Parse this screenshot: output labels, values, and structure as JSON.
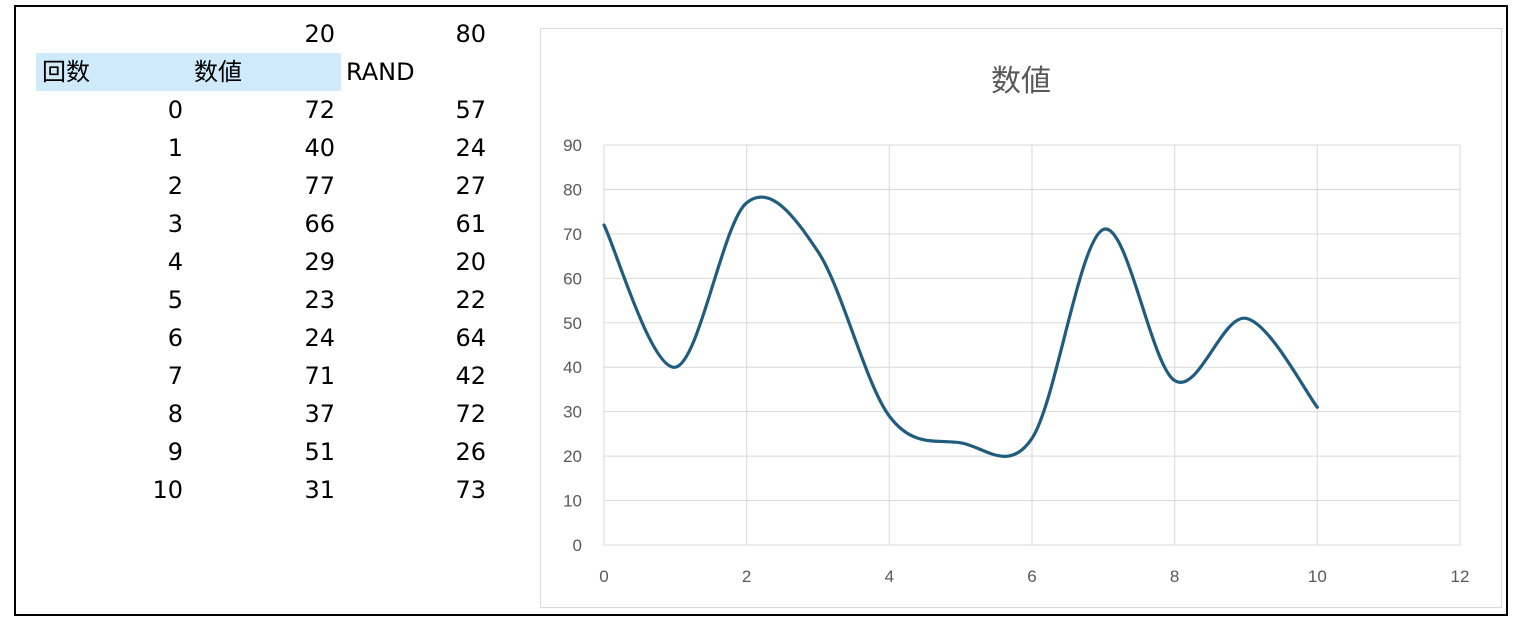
{
  "sheet": {
    "param_low": "20",
    "param_high": "80",
    "headers": {
      "count": "回数",
      "value": "数値",
      "rand": "RAND"
    },
    "rows": [
      {
        "n": "0",
        "value": "72",
        "rand": "57"
      },
      {
        "n": "1",
        "value": "40",
        "rand": "24"
      },
      {
        "n": "2",
        "value": "77",
        "rand": "27"
      },
      {
        "n": "3",
        "value": "66",
        "rand": "61"
      },
      {
        "n": "4",
        "value": "29",
        "rand": "20"
      },
      {
        "n": "5",
        "value": "23",
        "rand": "22"
      },
      {
        "n": "6",
        "value": "24",
        "rand": "64"
      },
      {
        "n": "7",
        "value": "71",
        "rand": "42"
      },
      {
        "n": "8",
        "value": "37",
        "rand": "72"
      },
      {
        "n": "9",
        "value": "51",
        "rand": "26"
      },
      {
        "n": "10",
        "value": "31",
        "rand": "73"
      }
    ],
    "header_fill": "#cfeafb"
  },
  "chart_data": {
    "type": "line",
    "smooth": true,
    "title": "数値",
    "x": [
      0,
      1,
      2,
      3,
      4,
      5,
      6,
      7,
      8,
      9,
      10
    ],
    "series": [
      {
        "values": [
          72,
          40,
          77,
          66,
          29,
          23,
          24,
          71,
          37,
          51,
          31
        ],
        "color": "#1f5c7e"
      }
    ],
    "xlim": [
      0,
      12
    ],
    "ylim": [
      0,
      90
    ],
    "xticks": [
      0,
      2,
      4,
      6,
      8,
      10,
      12
    ],
    "yticks": [
      0,
      10,
      20,
      30,
      40,
      50,
      60,
      70,
      80,
      90
    ],
    "grid": true,
    "grid_color": "#d9d9d9",
    "tick_color": "#595959"
  }
}
